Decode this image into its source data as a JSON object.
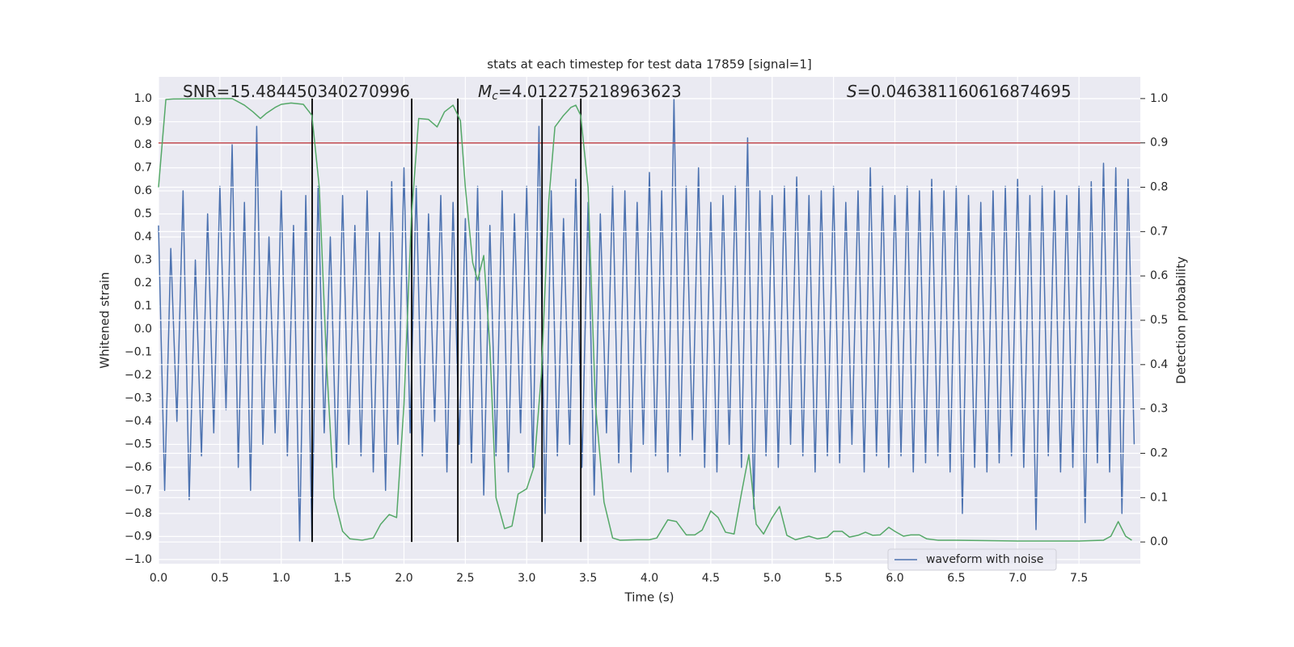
{
  "chart_data": {
    "type": "line",
    "title": "stats at each timestep for test data 17859 [signal=1]",
    "xlabel": "Time (s)",
    "ylabel": "Whitened strain",
    "y2label": "Detection probability",
    "annotations": [
      {
        "text": "SNR=15.484450340270996"
      },
      {
        "symbol": "M",
        "subscript": "c",
        "text": "=4.012275218963623"
      },
      {
        "symbol": "S",
        "text": "=0.046381160616874695"
      }
    ],
    "xlim": [
      0,
      8
    ],
    "ylim": [
      -1.018,
      1.095
    ],
    "y2lim": [
      -0.049,
      1.049
    ],
    "xticks": [
      {
        "value": 0,
        "label": "0.0"
      },
      0.5,
      {
        "value": 1,
        "label": "1.0"
      },
      1.5,
      {
        "value": 2,
        "label": "2.0"
      },
      2.5,
      {
        "value": 3,
        "label": "3.0"
      },
      3.5,
      {
        "value": 4,
        "label": "4.0"
      },
      4.5,
      {
        "value": 5,
        "label": "5.0"
      },
      5.5,
      {
        "value": 6,
        "label": "6.0"
      },
      6.5,
      {
        "value": 7,
        "label": "7.0"
      },
      7.5
    ],
    "yticks": [
      {
        "value": -1,
        "label": "−1.0"
      },
      {
        "value": -0.9,
        "label": "−0.9"
      },
      {
        "value": -0.8,
        "label": "−0.8"
      },
      {
        "value": -0.7,
        "label": "−0.7"
      },
      {
        "value": -0.6,
        "label": "−0.6"
      },
      {
        "value": -0.5,
        "label": "−0.5"
      },
      {
        "value": -0.4,
        "label": "−0.4"
      },
      {
        "value": -0.3,
        "label": "−0.3"
      },
      {
        "value": -0.2,
        "label": "−0.2"
      },
      {
        "value": -0.1,
        "label": "−0.1"
      },
      {
        "value": 0,
        "label": "0.0"
      },
      0.1,
      0.2,
      0.3,
      0.4,
      0.5,
      0.6,
      0.7,
      0.8,
      0.9,
      {
        "value": 1,
        "label": "1.0"
      }
    ],
    "y2ticks": [
      {
        "value": 0,
        "label": "0.0"
      },
      0.1,
      0.2,
      0.3,
      0.4,
      0.5,
      0.6,
      0.7,
      0.8,
      0.9,
      {
        "value": 1,
        "label": "1.0"
      }
    ],
    "grid": true,
    "legend": "lower right",
    "series": [
      {
        "name": "waveform with noise",
        "color": "#4c72b0",
        "x": [
          0,
          0.05,
          0.1,
          0.15,
          0.2,
          0.25,
          0.3,
          0.35,
          0.4,
          0.45,
          0.5,
          0.55,
          0.6,
          0.65,
          0.7,
          0.75,
          0.8,
          0.85,
          0.9,
          0.95,
          1,
          1.05,
          1.1,
          1.15,
          1.2,
          1.25,
          1.3,
          1.35,
          1.4,
          1.45,
          1.5,
          1.55,
          1.6,
          1.65,
          1.7,
          1.75,
          1.8,
          1.85,
          1.9,
          1.95,
          2,
          2.05,
          2.1,
          2.15,
          2.2,
          2.25,
          2.3,
          2.35,
          2.4,
          2.45,
          2.5,
          2.55,
          2.6,
          2.65,
          2.7,
          2.75,
          2.8,
          2.85,
          2.9,
          2.95,
          3,
          3.05,
          3.1,
          3.15,
          3.2,
          3.25,
          3.3,
          3.35,
          3.4,
          3.45,
          3.5,
          3.55,
          3.6,
          3.65,
          3.7,
          3.75,
          3.8,
          3.85,
          3.9,
          3.95,
          4,
          4.05,
          4.1,
          4.15,
          4.2,
          4.25,
          4.3,
          4.35,
          4.4,
          4.45,
          4.5,
          4.55,
          4.6,
          4.65,
          4.7,
          4.75,
          4.8,
          4.85,
          4.9,
          4.95,
          5,
          5.05,
          5.1,
          5.15,
          5.2,
          5.25,
          5.3,
          5.35,
          5.4,
          5.45,
          5.5,
          5.55,
          5.6,
          5.65,
          5.7,
          5.75,
          5.8,
          5.85,
          5.9,
          5.95,
          6,
          6.05,
          6.1,
          6.15,
          6.2,
          6.25,
          6.3,
          6.35,
          6.4,
          6.45,
          6.5,
          6.55,
          6.6,
          6.65,
          6.7,
          6.75,
          6.8,
          6.85,
          6.9,
          6.95,
          7,
          7.05,
          7.1,
          7.15,
          7.2,
          7.25,
          7.3,
          7.35,
          7.4,
          7.45,
          7.5,
          7.55,
          7.6,
          7.65,
          7.7,
          7.75,
          7.8,
          7.85,
          7.9,
          7.95
        ],
        "values": [
          0.45,
          -0.7,
          0.35,
          -0.4,
          0.6,
          -0.74,
          0.3,
          -0.55,
          0.5,
          -0.45,
          0.62,
          -0.35,
          0.8,
          -0.6,
          0.55,
          -0.7,
          0.88,
          -0.5,
          0.4,
          -0.45,
          0.6,
          -0.55,
          0.45,
          -0.92,
          0.58,
          -0.92,
          0.62,
          -0.45,
          0.4,
          -0.6,
          0.58,
          -0.5,
          0.45,
          -0.55,
          0.6,
          -0.62,
          0.42,
          -0.7,
          0.64,
          -0.5,
          0.7,
          -0.45,
          0.62,
          -0.55,
          0.5,
          -0.4,
          0.58,
          -0.62,
          0.55,
          -0.5,
          0.48,
          -0.58,
          0.62,
          -0.72,
          0.45,
          -0.55,
          0.6,
          -0.62,
          0.5,
          -0.45,
          0.62,
          -0.6,
          0.88,
          -0.8,
          0.6,
          -0.55,
          0.48,
          -0.5,
          0.65,
          -0.6,
          0.55,
          -0.72,
          0.5,
          -0.45,
          0.62,
          -0.58,
          0.6,
          -0.62,
          0.55,
          -0.5,
          0.68,
          -0.55,
          0.6,
          -0.62,
          1.0,
          -0.55,
          0.62,
          -0.48,
          0.7,
          -0.6,
          0.55,
          -0.62,
          0.58,
          -0.5,
          0.62,
          -0.6,
          0.83,
          -0.78,
          0.6,
          -0.55,
          0.58,
          -0.6,
          0.62,
          -0.5,
          0.66,
          -0.55,
          0.58,
          -0.62,
          0.6,
          -0.55,
          0.62,
          -0.58,
          0.55,
          -0.5,
          0.6,
          -0.62,
          0.7,
          -0.55,
          0.62,
          -0.6,
          0.58,
          -0.55,
          0.62,
          -0.62,
          0.6,
          -0.58,
          0.65,
          -0.55,
          0.6,
          -0.62,
          0.62,
          -0.8,
          0.58,
          -0.6,
          0.55,
          -0.62,
          0.6,
          -0.58,
          0.62,
          -0.55,
          0.65,
          -0.6,
          0.58,
          -0.87,
          0.62,
          -0.55,
          0.6,
          -0.62,
          0.58,
          -0.6,
          0.62,
          -0.84,
          0.64,
          -0.58,
          0.72,
          -0.62,
          0.7,
          -0.8,
          0.65,
          -0.5
        ]
      },
      {
        "color": "#55a868",
        "axis": "y2",
        "x": [
          0,
          0.06,
          0.12,
          0.6,
          0.7,
          0.77,
          0.83,
          0.88,
          0.95,
          1,
          1.08,
          1.18,
          1.25,
          1.31,
          1.37,
          1.43,
          1.5,
          1.56,
          1.66,
          1.75,
          1.81,
          1.88,
          1.94,
          2,
          2.06,
          2.12,
          2.2,
          2.27,
          2.33,
          2.4,
          2.46,
          2.5,
          2.56,
          2.6,
          2.65,
          2.7,
          2.75,
          2.82,
          2.88,
          2.93,
          3,
          3.06,
          3.12,
          3.18,
          3.23,
          3.3,
          3.36,
          3.4,
          3.44,
          3.5,
          3.56,
          3.63,
          3.7,
          3.76,
          3.9,
          4,
          4.06,
          4.15,
          4.22,
          4.3,
          4.37,
          4.43,
          4.5,
          4.56,
          4.62,
          4.69,
          4.75,
          4.81,
          4.87,
          4.93,
          5,
          5.06,
          5.12,
          5.19,
          5.3,
          5.37,
          5.45,
          5.5,
          5.57,
          5.63,
          5.7,
          5.76,
          5.82,
          5.88,
          5.95,
          6,
          6.07,
          6.13,
          6.2,
          6.26,
          6.35,
          6.5,
          7,
          7.5,
          7.7,
          7.76,
          7.82,
          7.88,
          7.93
        ],
        "values": [
          0.8,
          0.998,
          0.999,
          1.0,
          0.985,
          0.97,
          0.955,
          0.967,
          0.98,
          0.987,
          0.99,
          0.987,
          0.962,
          0.8,
          0.4,
          0.1,
          0.024,
          0.007,
          0.004,
          0.009,
          0.04,
          0.062,
          0.055,
          0.31,
          0.73,
          0.955,
          0.953,
          0.936,
          0.97,
          0.985,
          0.95,
          0.8,
          0.63,
          0.59,
          0.646,
          0.44,
          0.1,
          0.03,
          0.036,
          0.108,
          0.12,
          0.17,
          0.38,
          0.77,
          0.936,
          0.962,
          0.98,
          0.985,
          0.962,
          0.8,
          0.31,
          0.09,
          0.009,
          0.004,
          0.005,
          0.005,
          0.009,
          0.05,
          0.046,
          0.016,
          0.016,
          0.027,
          0.07,
          0.055,
          0.022,
          0.018,
          0.11,
          0.197,
          0.04,
          0.018,
          0.055,
          0.08,
          0.015,
          0.005,
          0.013,
          0.007,
          0.011,
          0.024,
          0.024,
          0.011,
          0.015,
          0.022,
          0.015,
          0.016,
          0.033,
          0.024,
          0.013,
          0.016,
          0.016,
          0.007,
          0.004,
          0.004,
          0.002,
          0.002,
          0.004,
          0.013,
          0.046,
          0.013,
          0.004
        ]
      }
    ],
    "hline": {
      "y": 0.9,
      "axis": "y2",
      "color": "#c44e52"
    },
    "vlines": {
      "x": [
        1.252,
        2.063,
        2.439,
        3.125,
        3.441
      ],
      "ymin": 0,
      "ymax": 1,
      "axis": "y2",
      "color": "#000000"
    }
  }
}
